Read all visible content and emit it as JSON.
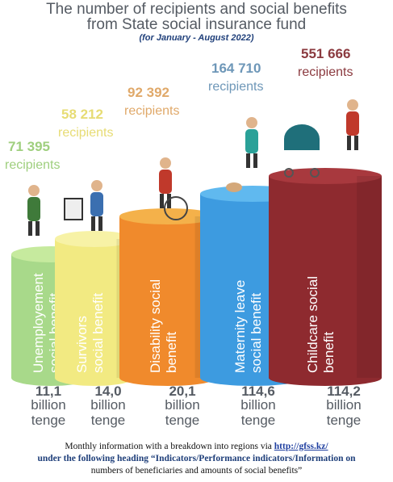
{
  "header": {
    "title_line1": "The number of recipients and social benefits",
    "title_line2": "from State social insurance fund",
    "subtitle": "(for January - August 2022)"
  },
  "chart_data": {
    "type": "bar",
    "categories": [
      "Unemployement social benefit",
      "Survivors social benefit",
      "Disability social benefit",
      "Maternity leave social benefit",
      "Childcare social benefit"
    ],
    "labels_lines": [
      [
        "Unemployement",
        "social benefit"
      ],
      [
        "Survivors",
        "social benefit"
      ],
      [
        "Disability social",
        "benefit"
      ],
      [
        "Maternity leave",
        "social benefit"
      ],
      [
        "Childcare social",
        "benefit"
      ]
    ],
    "recipients": [
      71395,
      58212,
      92392,
      164710,
      551666
    ],
    "recipients_text": [
      "71 395",
      "58 212",
      "92 392",
      "164 710",
      "551 666"
    ],
    "recipients_word": "recipients",
    "amounts_text": [
      "11,1",
      "14,0",
      "20,1",
      "114,6",
      "114,2"
    ],
    "amounts": [
      11.1,
      14.0,
      20.1,
      114.6,
      114.2
    ],
    "amount_unit_line1": "billion",
    "amount_unit_line2": "tenge",
    "colors": [
      "#a8d98a",
      "#f2ea82",
      "#f08a2c",
      "#3d9be0",
      "#8e2a2f"
    ],
    "top_colors": [
      "#c6ea9e",
      "#f7f2a6",
      "#f4b14a",
      "#60b9ef",
      "#a8393e"
    ],
    "recipient_text_colors": [
      "#9fcf7e",
      "#e7dc74",
      "#e0a96a",
      "#6e97b8",
      "#8b3a3f"
    ]
  },
  "footer": {
    "line1_prefix": "Monthly information with a breakdown into regions via",
    "line1_link": "http://gfss.kz/",
    "line2": "under the following heading “Indicators/Performance indicators/Information on",
    "line3": "numbers of beneficiaries and amounts of social benefits”"
  }
}
